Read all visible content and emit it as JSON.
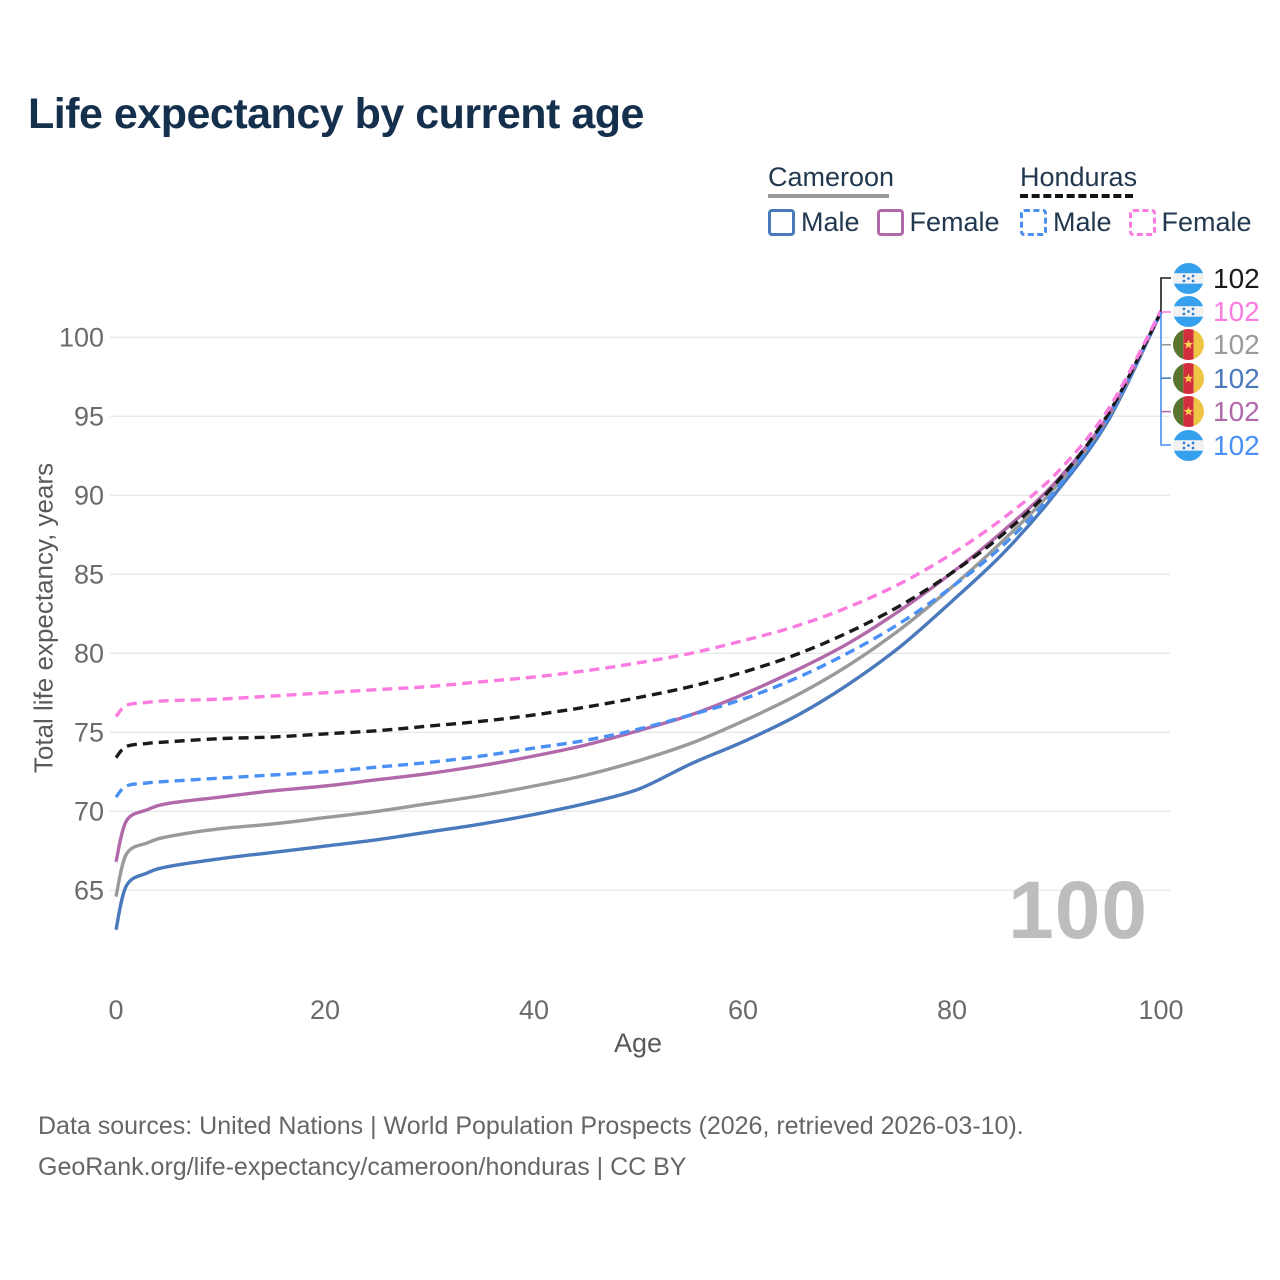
{
  "title": "Life expectancy by current age",
  "legend": {
    "groups": [
      {
        "country": "Cameroon",
        "style": "solid",
        "items": [
          {
            "label": "Male",
            "series": "cameroon_male"
          },
          {
            "label": "Female",
            "series": "cameroon_female"
          }
        ]
      },
      {
        "country": "Honduras",
        "style": "dashed",
        "items": [
          {
            "label": "Male",
            "series": "honduras_male"
          },
          {
            "label": "Female",
            "series": "honduras_female"
          }
        ]
      }
    ]
  },
  "flags": {
    "honduras": {
      "blue": "#35a1ee",
      "white": "#f2f2f2",
      "star": "#2f7fd0"
    },
    "cameroon": {
      "green": "#59742e",
      "red": "#d22e3e",
      "yellow": "#eec445",
      "star": "#f6d34d"
    }
  },
  "footer": {
    "line1": "Data sources: United Nations | World Population Prospects (2026, retrieved 2026-03-10).",
    "line2": "GeoRank.org/life-expectancy/cameroon/honduras | CC BY"
  },
  "chart_data": {
    "type": "line",
    "title": "Life expectancy by current age",
    "xlabel": "Age",
    "ylabel": "Total life expectancy, years",
    "watermark": "100",
    "xlim": [
      0,
      100
    ],
    "ylim": [
      62,
      103
    ],
    "xticks": [
      0,
      20,
      40,
      60,
      80,
      100
    ],
    "yticks": [
      65,
      70,
      75,
      80,
      85,
      90,
      95,
      100
    ],
    "grid": "horizontal",
    "legend_position": "top-right",
    "x": [
      0,
      1,
      3,
      5,
      10,
      15,
      20,
      25,
      30,
      35,
      40,
      45,
      50,
      55,
      60,
      65,
      70,
      75,
      80,
      85,
      90,
      95,
      100
    ],
    "series": [
      {
        "id": "cameroon_male",
        "name": "Cameroon Male",
        "country": "cameroon",
        "color": "#4a79bc",
        "dash": false,
        "values": [
          62.5,
          65.3,
          66.1,
          66.5,
          67.0,
          67.4,
          67.8,
          68.2,
          68.7,
          69.2,
          69.8,
          70.5,
          71.4,
          73.0,
          74.4,
          76.0,
          78.0,
          80.4,
          83.3,
          86.4,
          90.2,
          94.8,
          101.6
        ]
      },
      {
        "id": "cameroon_all",
        "name": "Cameroon",
        "country": "cameroon",
        "color": "#9a9a9a",
        "dash": false,
        "values": [
          64.6,
          67.3,
          68.0,
          68.4,
          68.9,
          69.2,
          69.6,
          70.0,
          70.5,
          71.0,
          71.6,
          72.3,
          73.2,
          74.3,
          75.7,
          77.3,
          79.2,
          81.5,
          84.2,
          87.2,
          90.6,
          95.0,
          101.6
        ]
      },
      {
        "id": "cameroon_female",
        "name": "Cameroon Female",
        "country": "cameroon",
        "color": "#b269aa",
        "dash": false,
        "values": [
          66.8,
          69.4,
          70.1,
          70.5,
          70.9,
          71.3,
          71.6,
          72.0,
          72.4,
          72.9,
          73.5,
          74.2,
          75.1,
          76.1,
          77.4,
          78.9,
          80.6,
          82.7,
          85.1,
          87.8,
          90.9,
          95.1,
          101.6
        ]
      },
      {
        "id": "honduras_male",
        "name": "Honduras Male",
        "country": "honduras",
        "color": "#4a90f4",
        "dash": true,
        "values": [
          70.9,
          71.6,
          71.8,
          71.9,
          72.1,
          72.3,
          72.5,
          72.8,
          73.1,
          73.5,
          74.0,
          74.5,
          75.2,
          76.1,
          77.1,
          78.4,
          80.0,
          81.9,
          84.2,
          86.9,
          90.4,
          95.0,
          101.6
        ]
      },
      {
        "id": "honduras_all",
        "name": "Honduras",
        "country": "honduras",
        "color": "#1a1a1a",
        "dash": true,
        "values": [
          73.4,
          74.1,
          74.3,
          74.4,
          74.6,
          74.7,
          74.9,
          75.1,
          75.4,
          75.7,
          76.1,
          76.6,
          77.2,
          77.9,
          78.8,
          79.9,
          81.3,
          83.0,
          85.1,
          87.6,
          90.8,
          95.2,
          101.6
        ]
      },
      {
        "id": "honduras_female",
        "name": "Honduras Female",
        "country": "honduras",
        "color": "#fb7ce0",
        "dash": true,
        "values": [
          76.0,
          76.7,
          76.9,
          77.0,
          77.1,
          77.3,
          77.5,
          77.7,
          77.9,
          78.2,
          78.5,
          78.9,
          79.4,
          80.0,
          80.8,
          81.7,
          82.9,
          84.4,
          86.3,
          88.6,
          91.4,
          95.5,
          101.7
        ]
      }
    ],
    "end_labels": [
      {
        "country": "honduras",
        "series": "honduras_all",
        "color": "#1a1a1a",
        "value": "102"
      },
      {
        "country": "honduras",
        "series": "honduras_female",
        "color": "#fb7ce0",
        "value": "102"
      },
      {
        "country": "cameroon",
        "series": "cameroon_all",
        "color": "#9a9a9a",
        "value": "102"
      },
      {
        "country": "cameroon",
        "series": "cameroon_male",
        "color": "#4a79bc",
        "value": "102"
      },
      {
        "country": "cameroon",
        "series": "cameroon_female",
        "color": "#b269aa",
        "value": "102"
      },
      {
        "country": "honduras",
        "series": "honduras_male",
        "color": "#4a90f4",
        "value": "102"
      }
    ]
  }
}
